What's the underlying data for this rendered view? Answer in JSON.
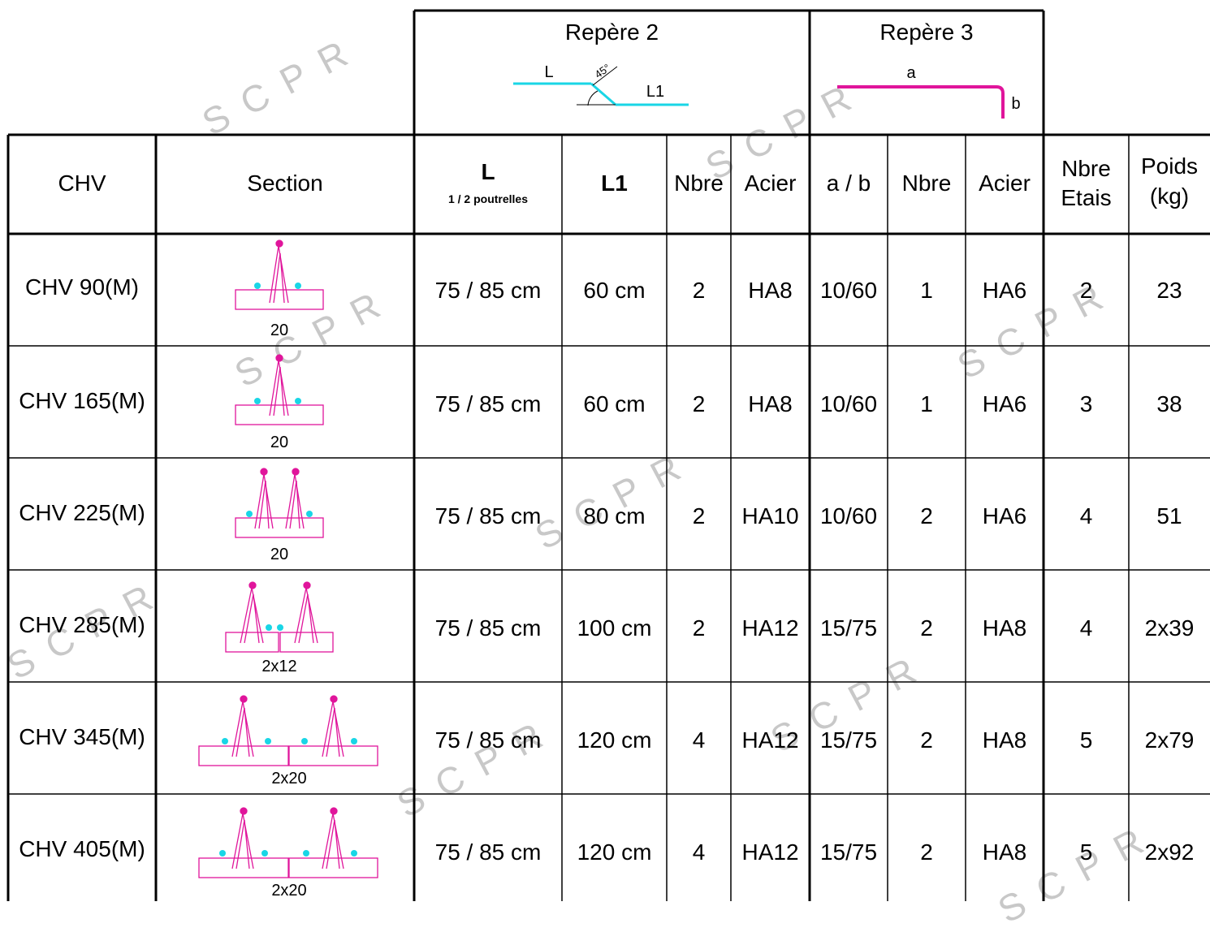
{
  "watermark": "SCPR",
  "colors": {
    "accent_magenta": "#e0159b",
    "accent_cyan": "#19d6e6",
    "grid": "#000000"
  },
  "group_headers": {
    "repere2": {
      "title": "Repère 2",
      "label_l": "L",
      "label_l1": "L1",
      "angle": "45°"
    },
    "repere3": {
      "title": "Repère 3",
      "label_a": "a",
      "label_b": "b"
    }
  },
  "columns": {
    "chv": "CHV",
    "section": "Section",
    "l": "L",
    "l_sub": "1 / 2 poutrelles",
    "l1": "L1",
    "nbre": "Nbre",
    "acier": "Acier",
    "ab": "a / b",
    "nbre3": "Nbre",
    "acier3": "Acier",
    "etais_1": "Nbre",
    "etais_2": "Etais",
    "poids_1": "Poids",
    "poids_2": "(kg)"
  },
  "rows": [
    {
      "chv": "CHV 90(M)",
      "section_label": "20",
      "l": "75 / 85 cm",
      "l1": "60 cm",
      "nbre": "2",
      "acier": "HA8",
      "ab": "10/60",
      "nbre3": "1",
      "acier3": "HA6",
      "etais": "2",
      "poids": "23"
    },
    {
      "chv": "CHV 165(M)",
      "section_label": "20",
      "l": "75 / 85 cm",
      "l1": "60 cm",
      "nbre": "2",
      "acier": "HA8",
      "ab": "10/60",
      "nbre3": "1",
      "acier3": "HA6",
      "etais": "3",
      "poids": "38"
    },
    {
      "chv": "CHV 225(M)",
      "section_label": "20",
      "l": "75 / 85 cm",
      "l1": "80 cm",
      "nbre": "2",
      "acier": "HA10",
      "ab": "10/60",
      "nbre3": "2",
      "acier3": "HA6",
      "etais": "4",
      "poids": "51"
    },
    {
      "chv": "CHV 285(M)",
      "section_label": "2x12",
      "l": "75 / 85 cm",
      "l1": "100 cm",
      "nbre": "2",
      "acier": "HA12",
      "ab": "15/75",
      "nbre3": "2",
      "acier3": "HA8",
      "etais": "4",
      "poids": "2x39"
    },
    {
      "chv": "CHV 345(M)",
      "section_label": "2x20",
      "l": "75 / 85 cm",
      "l1": "120 cm",
      "nbre": "4",
      "acier": "HA12",
      "ab": "15/75",
      "nbre3": "2",
      "acier3": "HA8",
      "etais": "5",
      "poids": "2x79"
    },
    {
      "chv": "CHV 405(M)",
      "section_label": "2x20",
      "l": "75 / 85 cm",
      "l1": "120 cm",
      "nbre": "4",
      "acier": "HA12",
      "ab": "15/75",
      "nbre3": "2",
      "acier3": "HA8",
      "etais": "5",
      "poids": "2x92"
    }
  ]
}
